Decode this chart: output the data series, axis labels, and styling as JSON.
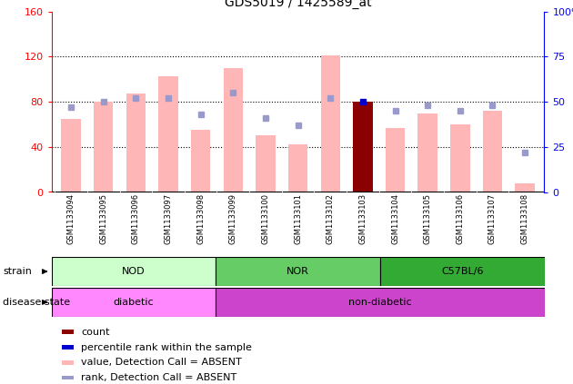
{
  "title": "GDS5019 / 1425589_at",
  "samples": [
    "GSM1133094",
    "GSM1133095",
    "GSM1133096",
    "GSM1133097",
    "GSM1133098",
    "GSM1133099",
    "GSM1133100",
    "GSM1133101",
    "GSM1133102",
    "GSM1133103",
    "GSM1133104",
    "GSM1133105",
    "GSM1133106",
    "GSM1133107",
    "GSM1133108"
  ],
  "values": [
    65,
    80,
    87,
    103,
    55,
    110,
    50,
    42,
    121,
    80,
    57,
    70,
    60,
    72,
    8
  ],
  "ranks": [
    47,
    50,
    52,
    52,
    43,
    55,
    41,
    37,
    52,
    50,
    45,
    48,
    45,
    48,
    22
  ],
  "count_bar_index": 9,
  "count_value": 80,
  "percentile_rank_index": 9,
  "percentile_rank_value": 50,
  "bar_color_normal": "#FFB6B6",
  "bar_color_count": "#8B0000",
  "rank_color": "#9999CC",
  "percentile_color": "#0000CC",
  "left_ylim": [
    0,
    160
  ],
  "right_ylim": [
    0,
    100
  ],
  "left_yticks": [
    0,
    40,
    80,
    120,
    160
  ],
  "right_yticks": [
    0,
    25,
    50,
    75,
    100
  ],
  "right_yticklabels": [
    "0",
    "25",
    "50",
    "75",
    "100%"
  ],
  "groups": [
    {
      "label": "NOD",
      "start": 0,
      "end": 4,
      "color": "#CCFFCC"
    },
    {
      "label": "NOR",
      "start": 5,
      "end": 9,
      "color": "#66CC66"
    },
    {
      "label": "C57BL/6",
      "start": 10,
      "end": 14,
      "color": "#33AA33"
    }
  ],
  "disease_groups": [
    {
      "label": "diabetic",
      "start": 0,
      "end": 4,
      "color": "#FF88FF"
    },
    {
      "label": "non-diabetic",
      "start": 5,
      "end": 14,
      "color": "#CC44CC"
    }
  ],
  "strain_label": "strain",
  "disease_label": "disease state",
  "legend_items": [
    {
      "color": "#8B0000",
      "label": "count"
    },
    {
      "color": "#0000CC",
      "label": "percentile rank within the sample"
    },
    {
      "color": "#FFB6B6",
      "label": "value, Detection Call = ABSENT"
    },
    {
      "color": "#9999CC",
      "label": "rank, Detection Call = ABSENT"
    }
  ],
  "xtick_bg_color": "#CCCCCC",
  "fig_bg": "#FFFFFF"
}
